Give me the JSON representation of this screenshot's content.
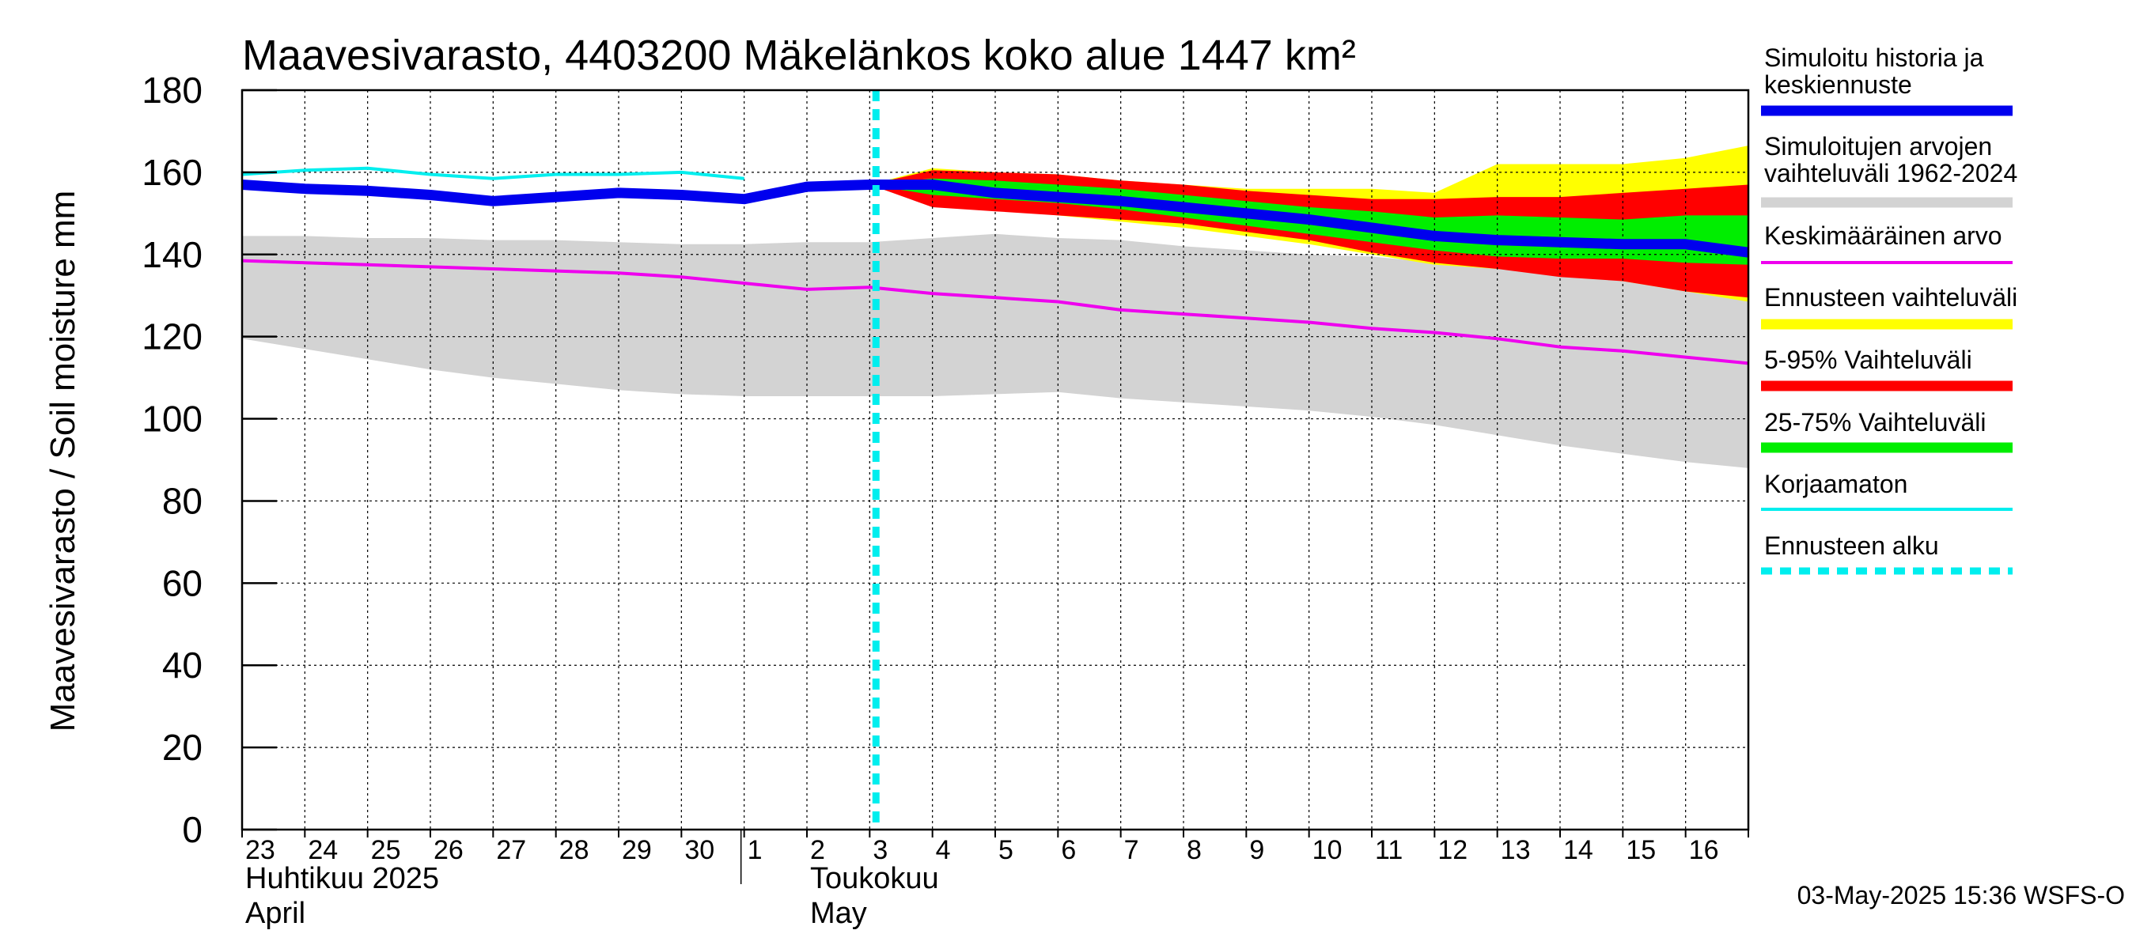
{
  "chart_data": {
    "type": "area",
    "title": "Maavesivarasto, 4403200 Mäkelänkos koko alue 1447 km²",
    "ylabel": "Maavesivarasto / Soil moisture   mm",
    "ylim": [
      0,
      180
    ],
    "yticks": [
      0,
      20,
      40,
      60,
      80,
      100,
      120,
      140,
      160,
      180
    ],
    "x_start": "2025-04-23",
    "x_range_days": [
      0,
      24
    ],
    "day_labels": [
      "23",
      "24",
      "25",
      "26",
      "27",
      "28",
      "29",
      "30",
      "1",
      "2",
      "3",
      "4",
      "5",
      "6",
      "7",
      "8",
      "9",
      "10",
      "11",
      "12",
      "13",
      "14",
      "15",
      "16"
    ],
    "month_labels": [
      {
        "line1": "Huhtikuu  2025",
        "line2": "April",
        "day": 0
      },
      {
        "line1": "Toukokuu",
        "line2": "May",
        "day": 9
      }
    ],
    "month_divider_day": 8,
    "forecast_start_day": 10.1,
    "series": [
      {
        "name": "Simuloitu historia ja keskiennuste",
        "color": "#0000ee",
        "x": [
          0,
          1,
          2,
          3,
          4,
          5,
          6,
          7,
          8,
          9,
          10,
          11,
          12,
          13,
          14,
          15,
          16,
          17,
          18,
          19,
          20,
          21,
          22,
          23,
          24
        ],
        "values": [
          157,
          156,
          155.5,
          154.5,
          153,
          154,
          155,
          154.5,
          153.5,
          156.5,
          157,
          157,
          155,
          154,
          153,
          151.5,
          150,
          148.5,
          146.5,
          144.5,
          143.5,
          143,
          142.5,
          142.5,
          140.5
        ]
      },
      {
        "name": "Keskimääräinen arvo",
        "color": "#ee00ee",
        "x": [
          0,
          1,
          2,
          3,
          4,
          5,
          6,
          7,
          8,
          9,
          10,
          11,
          12,
          13,
          14,
          15,
          16,
          17,
          18,
          19,
          20,
          21,
          22,
          23,
          24
        ],
        "values": [
          138.5,
          138,
          137.5,
          137,
          136.5,
          136,
          135.5,
          134.5,
          133,
          131.5,
          132,
          130.5,
          129.5,
          128.5,
          126.5,
          125.5,
          124.5,
          123.5,
          122,
          121,
          119.5,
          117.5,
          116.5,
          115,
          113.5
        ]
      },
      {
        "name": "Korjaamaton",
        "color": "#00eeee",
        "x": [
          0,
          1,
          2,
          3,
          4,
          5,
          6,
          7,
          8
        ],
        "values": [
          159.5,
          160.5,
          161,
          159.5,
          158.5,
          159.5,
          159.5,
          160,
          158.5
        ]
      }
    ],
    "bands": [
      {
        "name": "Simuloitujen arvojen vaihteluväli 1962-2024",
        "color": "#d3d3d3",
        "x": [
          0,
          1,
          2,
          3,
          4,
          5,
          6,
          7,
          8,
          9,
          10,
          11,
          12,
          13,
          14,
          15,
          16,
          17,
          18,
          19,
          20,
          21,
          22,
          23,
          24
        ],
        "upper": [
          144.5,
          144.5,
          144,
          144,
          143.5,
          143.5,
          143,
          142.5,
          142.5,
          143,
          143,
          144,
          145,
          144,
          143.5,
          142,
          141,
          140,
          139.5,
          138,
          138,
          138,
          138,
          138,
          138
        ],
        "lower": [
          119.5,
          117,
          114.5,
          112,
          110,
          108.5,
          107,
          106,
          105.5,
          105.5,
          105.5,
          105.5,
          106,
          106.5,
          105,
          104,
          103,
          102,
          100.5,
          98.5,
          96,
          93.5,
          91.5,
          89.5,
          88
        ]
      },
      {
        "name": "Ennusteen vaihteluväli",
        "color": "#ffff00",
        "x": [
          10,
          11,
          12,
          13,
          14,
          15,
          16,
          17,
          18,
          19,
          20,
          21,
          22,
          23,
          24
        ],
        "upper": [
          157,
          161,
          160,
          159.5,
          158,
          157,
          156,
          156,
          156,
          155,
          162,
          162,
          162,
          163.5,
          166.5
        ],
        "lower": [
          157,
          152.5,
          151,
          149.5,
          148,
          146.5,
          144.5,
          142.5,
          140,
          137.5,
          136.5,
          135,
          133.5,
          131,
          128.5
        ]
      },
      {
        "name": "5-95% Vaihteluväli",
        "color": "#ff0000",
        "x": [
          10,
          11,
          12,
          13,
          14,
          15,
          16,
          17,
          18,
          19,
          20,
          21,
          22,
          23,
          24
        ],
        "upper": [
          157,
          160.5,
          160,
          159.5,
          158,
          157,
          155.5,
          154.5,
          153.5,
          153.5,
          154,
          154,
          155,
          156,
          157
        ],
        "lower": [
          157,
          151.5,
          150.5,
          149.5,
          148.5,
          147.5,
          145.5,
          143.5,
          140.5,
          138,
          136.5,
          134.5,
          133.5,
          131,
          129.5
        ]
      },
      {
        "name": "25-75% Vaihteluväli",
        "color": "#00ee00",
        "x": [
          10,
          11,
          12,
          13,
          14,
          15,
          16,
          17,
          18,
          19,
          20,
          21,
          22,
          23,
          24
        ],
        "upper": [
          157,
          158.5,
          158,
          157,
          156,
          154.5,
          153,
          151.5,
          150.5,
          149,
          149.5,
          149,
          148.5,
          149.5,
          149.5
        ],
        "lower": [
          157,
          154.5,
          153.5,
          152.5,
          151,
          149,
          147,
          145,
          143,
          141,
          139.5,
          139,
          139,
          138,
          137.5
        ]
      }
    ],
    "legend": [
      {
        "label": "Simuloitu historia ja keskiennuste",
        "color": "#0000ee",
        "style": "thick"
      },
      {
        "label": "Simuloitujen arvojen vaihteluväli 1962-2024",
        "color": "#d3d3d3",
        "style": "thick"
      },
      {
        "label": "Keskimääräinen arvo",
        "color": "#ee00ee",
        "style": "thin"
      },
      {
        "label": "Ennusteen vaihteluväli",
        "color": "#ffff00",
        "style": "thick"
      },
      {
        "label": "5-95% Vaihteluväli",
        "color": "#ff0000",
        "style": "thick"
      },
      {
        "label": "25-75% Vaihteluväli",
        "color": "#00ee00",
        "style": "thick"
      },
      {
        "label": "Korjaamaton",
        "color": "#00eeee",
        "style": "thin"
      },
      {
        "label": "Ennusteen alku",
        "color": "#00eeee",
        "style": "dashed"
      }
    ],
    "forecast_marker_color": "#00eeee",
    "footer": "03-May-2025 15:36 WSFS-O"
  }
}
